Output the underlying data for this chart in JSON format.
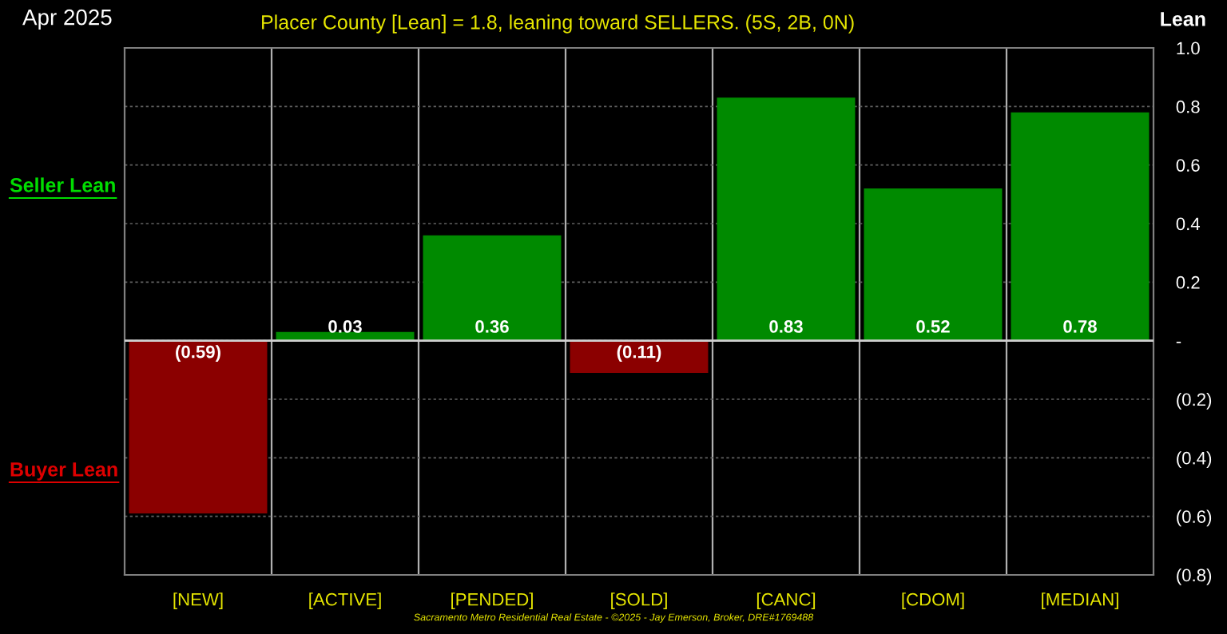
{
  "chart_data": {
    "type": "bar",
    "title": "Placer County [Lean] = 1.8, leaning toward SELLERS. (5S, 2B, 0N)",
    "subtitle": "Apr 2025",
    "ylabel": "Lean",
    "categories": [
      "[NEW]",
      "[ACTIVE]",
      "[PENDED]",
      "[SOLD]",
      "[CANC]",
      "[CDOM]",
      "[MEDIAN]"
    ],
    "values": [
      -0.59,
      0.03,
      0.36,
      -0.11,
      0.83,
      0.52,
      0.78
    ],
    "colors": [
      "#8b0000",
      "#008a00",
      "#008a00",
      "#8b0000",
      "#008a00",
      "#008a00",
      "#008a00"
    ],
    "value_labels": [
      "(0.59)",
      "0.03",
      "0.36",
      "(0.11)",
      "0.83",
      "0.52",
      "0.78"
    ],
    "ylim": [
      -0.8,
      1.0
    ],
    "yticks": [
      {
        "value": -0.8,
        "label": "(0.8)"
      },
      {
        "value": -0.6,
        "label": "(0.6)"
      },
      {
        "value": -0.4,
        "label": "(0.4)"
      },
      {
        "value": -0.2,
        "label": "(0.2)"
      },
      {
        "value": 0,
        "label": "-"
      },
      0.2,
      0.4,
      0.6,
      0.8,
      {
        "value": 1,
        "label": "1.0"
      }
    ],
    "grid": true,
    "annotations": [
      "Seller Lean",
      "Buyer Lean",
      "Sacramento Metro Residential Real Estate - ©2025 - Jay Emerson, Broker, DRE#1769488"
    ]
  }
}
